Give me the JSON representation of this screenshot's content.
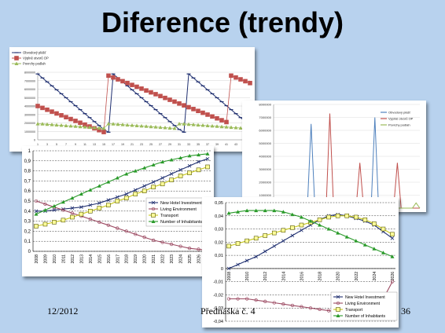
{
  "slide": {
    "title": "Diference (trendy)",
    "footer_date": "12/2012",
    "footer_lecture": "Přednáška č. 4",
    "page_number": "36",
    "background": "#b8d2ee"
  },
  "chart_data": [
    {
      "type": "line",
      "legend": [
        "Obvodový plášť",
        "Výplně otvorů OP",
        "Povrchy podlah"
      ],
      "legend_placement": "top-left",
      "colors": [
        "#1f2f70",
        "#c0504d",
        "#9bbb59"
      ],
      "y_ticks": [
        "8000000",
        "7000000",
        "6000000",
        "5000000",
        "4000000",
        "3000000",
        "2000000",
        "1000000",
        "0"
      ],
      "x_ticks": [
        "1",
        "3",
        "5",
        "7",
        "9",
        "11",
        "13",
        "15",
        "17",
        "19",
        "21",
        "23",
        "25",
        "27",
        "29",
        "31",
        "33",
        "35",
        "37",
        "39",
        "41",
        "43",
        "45"
      ],
      "ylim": [
        0,
        8000000
      ],
      "x": [
        1,
        2,
        3,
        4,
        5,
        6,
        7,
        8,
        9,
        10,
        11,
        12,
        13,
        14,
        15,
        16,
        17,
        18,
        19,
        20,
        21,
        22,
        23,
        24,
        25,
        26,
        27,
        28,
        29,
        30,
        31,
        32,
        33,
        34,
        35,
        36,
        37,
        38,
        39,
        40,
        41,
        42,
        43,
        44,
        45,
        46
      ],
      "series": [
        {
          "name": "Obvodový plášť",
          "values": [
            7800000,
            7330000,
            6860000,
            6390000,
            5920000,
            5450000,
            4980000,
            4510000,
            4040000,
            3570000,
            3100000,
            2630000,
            2160000,
            1690000,
            1220000,
            900000,
            7800000,
            7330000,
            6860000,
            6390000,
            5920000,
            5450000,
            4980000,
            4510000,
            4040000,
            3570000,
            3100000,
            2630000,
            2160000,
            1690000,
            1220000,
            900000,
            7800000,
            7330000,
            6860000,
            6390000,
            5920000,
            5450000,
            4980000,
            4510000,
            4040000,
            3570000,
            3100000,
            2630000,
            2160000,
            1690000
          ]
        },
        {
          "name": "Výplně otvorů OP",
          "values": [
            4000000,
            3780000,
            3560000,
            3340000,
            3120000,
            2900000,
            2680000,
            2460000,
            2240000,
            2020000,
            1800000,
            1580000,
            1360000,
            1140000,
            920000,
            7600000,
            7380000,
            7160000,
            6940000,
            6720000,
            6500000,
            6280000,
            6060000,
            5840000,
            5620000,
            5400000,
            5180000,
            4960000,
            4740000,
            4520000,
            4300000,
            4080000,
            3860000,
            3640000,
            3420000,
            3200000,
            2980000,
            2760000,
            2540000,
            2320000,
            2100000,
            7600000,
            7380000,
            7160000,
            6940000,
            6720000
          ]
        },
        {
          "name": "Povrchy podlah",
          "values": [
            1900000,
            1880000,
            1840000,
            1800000,
            1760000,
            1720000,
            1680000,
            1640000,
            1600000,
            1560000,
            1520000,
            1480000,
            1440000,
            1400000,
            1360000,
            1900000,
            1880000,
            1840000,
            1800000,
            1760000,
            1720000,
            1680000,
            1640000,
            1600000,
            1560000,
            1520000,
            1480000,
            1440000,
            1400000,
            1360000,
            1900000,
            1880000,
            1840000,
            1800000,
            1760000,
            1720000,
            1680000,
            1640000,
            1600000,
            1560000,
            1520000,
            1480000,
            1440000,
            1400000,
            1360000,
            1900000
          ]
        }
      ]
    },
    {
      "type": "line",
      "legend": [
        "Obvodový plášť",
        "Výplně otvorů OP",
        "Povrchy podlah"
      ],
      "legend_placement": "right",
      "colors": [
        "#4f81bd",
        "#c0504d",
        "#9bbb59"
      ],
      "y_ticks": [
        "8000000",
        "7000000",
        "6000000",
        "5000000",
        "4000000",
        "3000000",
        "2000000",
        "1000000"
      ],
      "ylim": [
        0,
        8000000
      ],
      "x": [
        0,
        1,
        2,
        3,
        4,
        5,
        6,
        7,
        8,
        9,
        10,
        11,
        12,
        13,
        14,
        15,
        16,
        17,
        18,
        19,
        20,
        21,
        22,
        23,
        24,
        25,
        26,
        27,
        28,
        29,
        30,
        31,
        32,
        33,
        34,
        35,
        36,
        37,
        38,
        39
      ],
      "series": [
        {
          "name": "Obvodový plášť",
          "values": [
            0,
            0,
            0,
            0,
            0,
            0,
            0,
            0,
            0,
            0,
            6500000,
            0,
            0,
            0,
            0,
            0,
            0,
            0,
            0,
            0,
            0,
            0,
            0,
            0,
            0,
            0,
            0,
            7000000,
            0,
            0,
            0,
            0,
            0,
            0,
            0,
            0,
            0,
            0,
            0,
            0
          ]
        },
        {
          "name": "Výplně otvorů OP",
          "values": [
            0,
            0,
            0,
            0,
            0,
            0,
            0,
            0,
            0,
            0,
            0,
            0,
            0,
            0,
            0,
            7300000,
            0,
            0,
            0,
            0,
            0,
            0,
            0,
            3500000,
            0,
            0,
            0,
            0,
            0,
            0,
            0,
            0,
            0,
            3500000,
            0,
            0,
            0,
            0,
            0,
            0
          ]
        },
        {
          "name": "Povrchy podlah",
          "values": [
            0,
            0,
            0,
            0,
            0,
            0,
            0,
            0,
            0,
            0,
            0,
            0,
            0,
            0,
            0,
            0,
            0,
            0,
            0,
            0,
            0,
            0,
            0,
            0,
            0,
            0,
            0,
            0,
            0,
            0,
            0,
            0,
            0,
            0,
            0,
            0,
            0,
            0,
            400000,
            0
          ]
        }
      ]
    },
    {
      "type": "line",
      "categories": [
        "2008",
        "2009",
        "2010",
        "2011",
        "2012",
        "2013",
        "2014",
        "2015",
        "2016",
        "2017",
        "2018",
        "2019",
        "2020",
        "2021",
        "2022",
        "2023",
        "2024",
        "2025",
        "2026",
        "2027"
      ],
      "y_ticks": [
        "1",
        "0,9",
        "0,8",
        "0,7",
        "0,6",
        "0,5",
        "0,4",
        "0,3",
        "0,2",
        "0,1",
        "0"
      ],
      "ylim": [
        0,
        1
      ],
      "legend": [
        "New Hotel Investment",
        "Living Environment",
        "Transport",
        "Number of Inhabitants"
      ],
      "legend_placement": "right",
      "colors": [
        "#1f2f70",
        "#9c4a62",
        "#c9c914",
        "#2a9a2a"
      ],
      "series": [
        {
          "name": "New Hotel Investment",
          "values": [
            0.4,
            0.4,
            0.41,
            0.42,
            0.43,
            0.44,
            0.46,
            0.48,
            0.51,
            0.54,
            0.57,
            0.61,
            0.65,
            0.69,
            0.73,
            0.77,
            0.81,
            0.85,
            0.89,
            0.92
          ]
        },
        {
          "name": "Living Environment",
          "values": [
            0.5,
            0.47,
            0.44,
            0.41,
            0.38,
            0.35,
            0.32,
            0.29,
            0.26,
            0.23,
            0.2,
            0.17,
            0.14,
            0.11,
            0.09,
            0.07,
            0.05,
            0.03,
            0.02,
            0.01
          ]
        },
        {
          "name": "Transport",
          "values": [
            0.25,
            0.27,
            0.29,
            0.31,
            0.34,
            0.37,
            0.4,
            0.43,
            0.46,
            0.5,
            0.53,
            0.57,
            0.6,
            0.64,
            0.67,
            0.71,
            0.75,
            0.78,
            0.81,
            0.84
          ]
        },
        {
          "name": "Number of Inhabitants",
          "values": [
            0.37,
            0.41,
            0.45,
            0.49,
            0.53,
            0.57,
            0.61,
            0.65,
            0.69,
            0.73,
            0.77,
            0.8,
            0.83,
            0.86,
            0.89,
            0.91,
            0.93,
            0.95,
            0.96,
            0.97
          ]
        }
      ]
    },
    {
      "type": "line",
      "categories": [
        "2008",
        "2009",
        "2010",
        "2011",
        "2012",
        "2013",
        "2014",
        "2015",
        "2016",
        "2017",
        "2018",
        "2019",
        "2020",
        "2021",
        "2022",
        "2023",
        "2024",
        "2025",
        "2026"
      ],
      "x_tick_labels": [
        "2008",
        "2010",
        "2012",
        "2014",
        "2016",
        "2018",
        "2020",
        "2022",
        "2024",
        "2026"
      ],
      "y_ticks": [
        "0,05",
        "0,04",
        "0,03",
        "0,02",
        "0,01",
        "0",
        "-0,01",
        "-0,02",
        "-0,03",
        "-0,04"
      ],
      "ylim": [
        -0.04,
        0.05
      ],
      "legend": [
        "New Hotel Investment",
        "Living Environment",
        "Transport",
        "Number of Inhabitants"
      ],
      "legend_placement": "bottom-right",
      "colors": [
        "#1f2f70",
        "#9c4a62",
        "#c9c914",
        "#2a9a2a"
      ],
      "series": [
        {
          "name": "New Hotel Investment",
          "values": [
            0,
            0.003,
            0.006,
            0.009,
            0.013,
            0.017,
            0.021,
            0.025,
            0.029,
            0.033,
            0.037,
            0.04,
            0.041,
            0.04,
            0.038,
            0.036,
            0.033,
            0.028,
            0.023
          ]
        },
        {
          "name": "Living Environment",
          "values": [
            -0.023,
            -0.023,
            -0.023,
            -0.024,
            -0.025,
            -0.026,
            -0.027,
            -0.028,
            -0.029,
            -0.03,
            -0.031,
            -0.032,
            -0.033,
            -0.033,
            -0.034,
            -0.034,
            -0.035,
            -0.023,
            -0.01
          ]
        },
        {
          "name": "Transport",
          "values": [
            0.017,
            0.019,
            0.021,
            0.023,
            0.025,
            0.027,
            0.029,
            0.031,
            0.033,
            0.035,
            0.037,
            0.039,
            0.04,
            0.04,
            0.039,
            0.037,
            0.034,
            0.03,
            0.026
          ]
        },
        {
          "name": "Number of Inhabitants",
          "values": [
            0.042,
            0.043,
            0.044,
            0.044,
            0.044,
            0.044,
            0.043,
            0.041,
            0.039,
            0.036,
            0.033,
            0.03,
            0.027,
            0.024,
            0.021,
            0.018,
            0.015,
            0.012,
            0.009
          ]
        }
      ]
    }
  ]
}
